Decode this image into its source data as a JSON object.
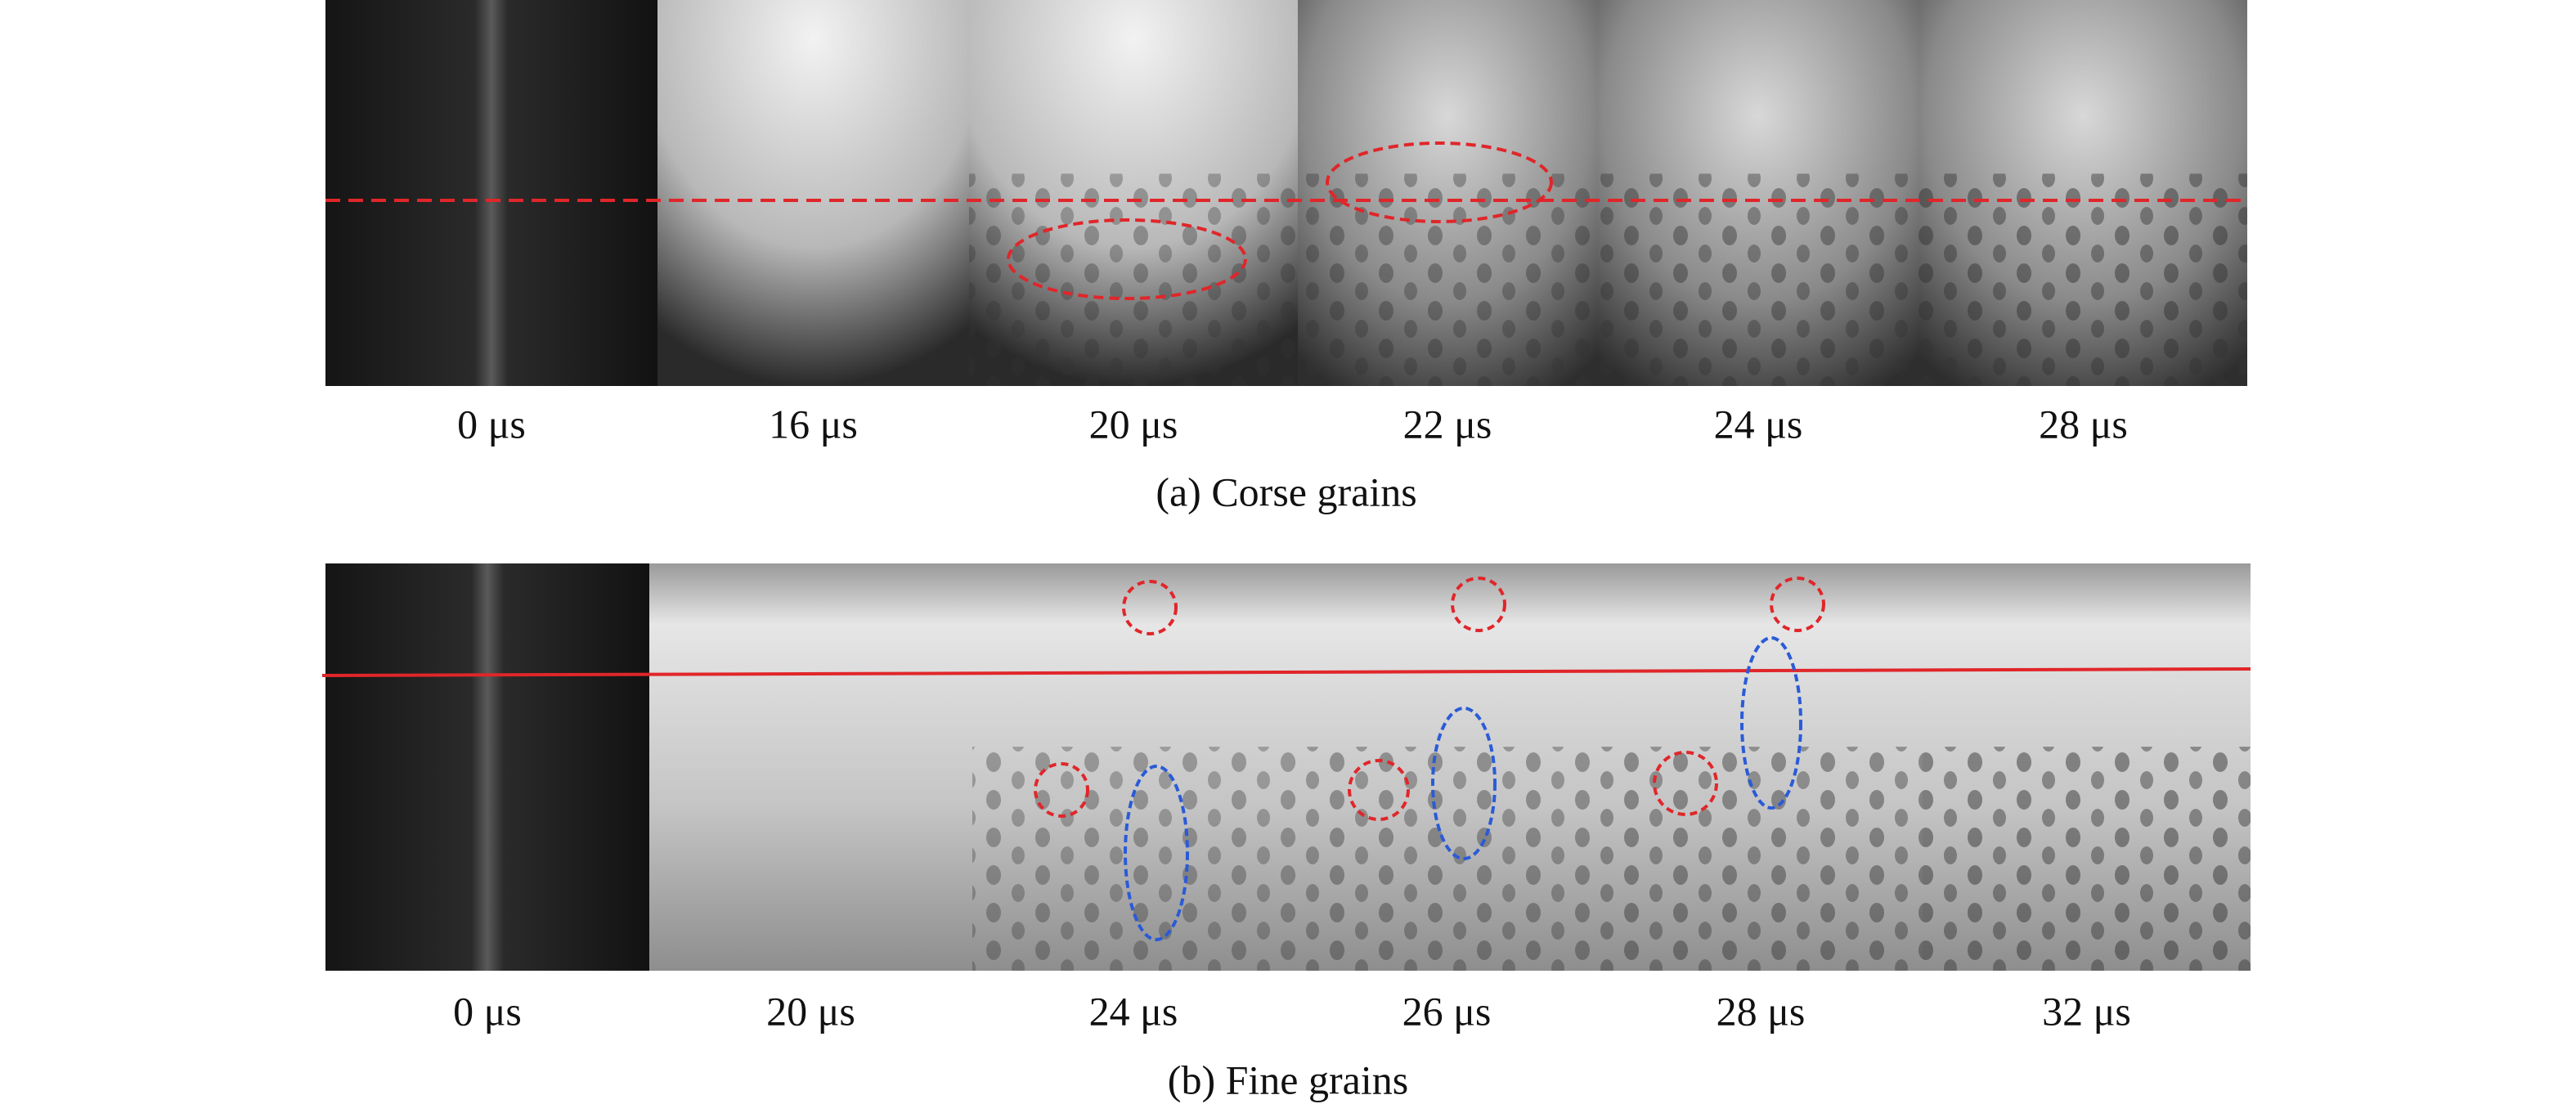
{
  "panels": [
    {
      "caption": "(a) Corse grains",
      "frames": [
        "0 μs",
        "16 μs",
        "20 μs",
        "22 μs",
        "24 μs",
        "28 μs"
      ]
    },
    {
      "caption": "(b) Fine grains",
      "frames": [
        "0 μs",
        "20 μs",
        "24 μs",
        "26 μs",
        "28 μs",
        "32 μs"
      ]
    }
  ]
}
